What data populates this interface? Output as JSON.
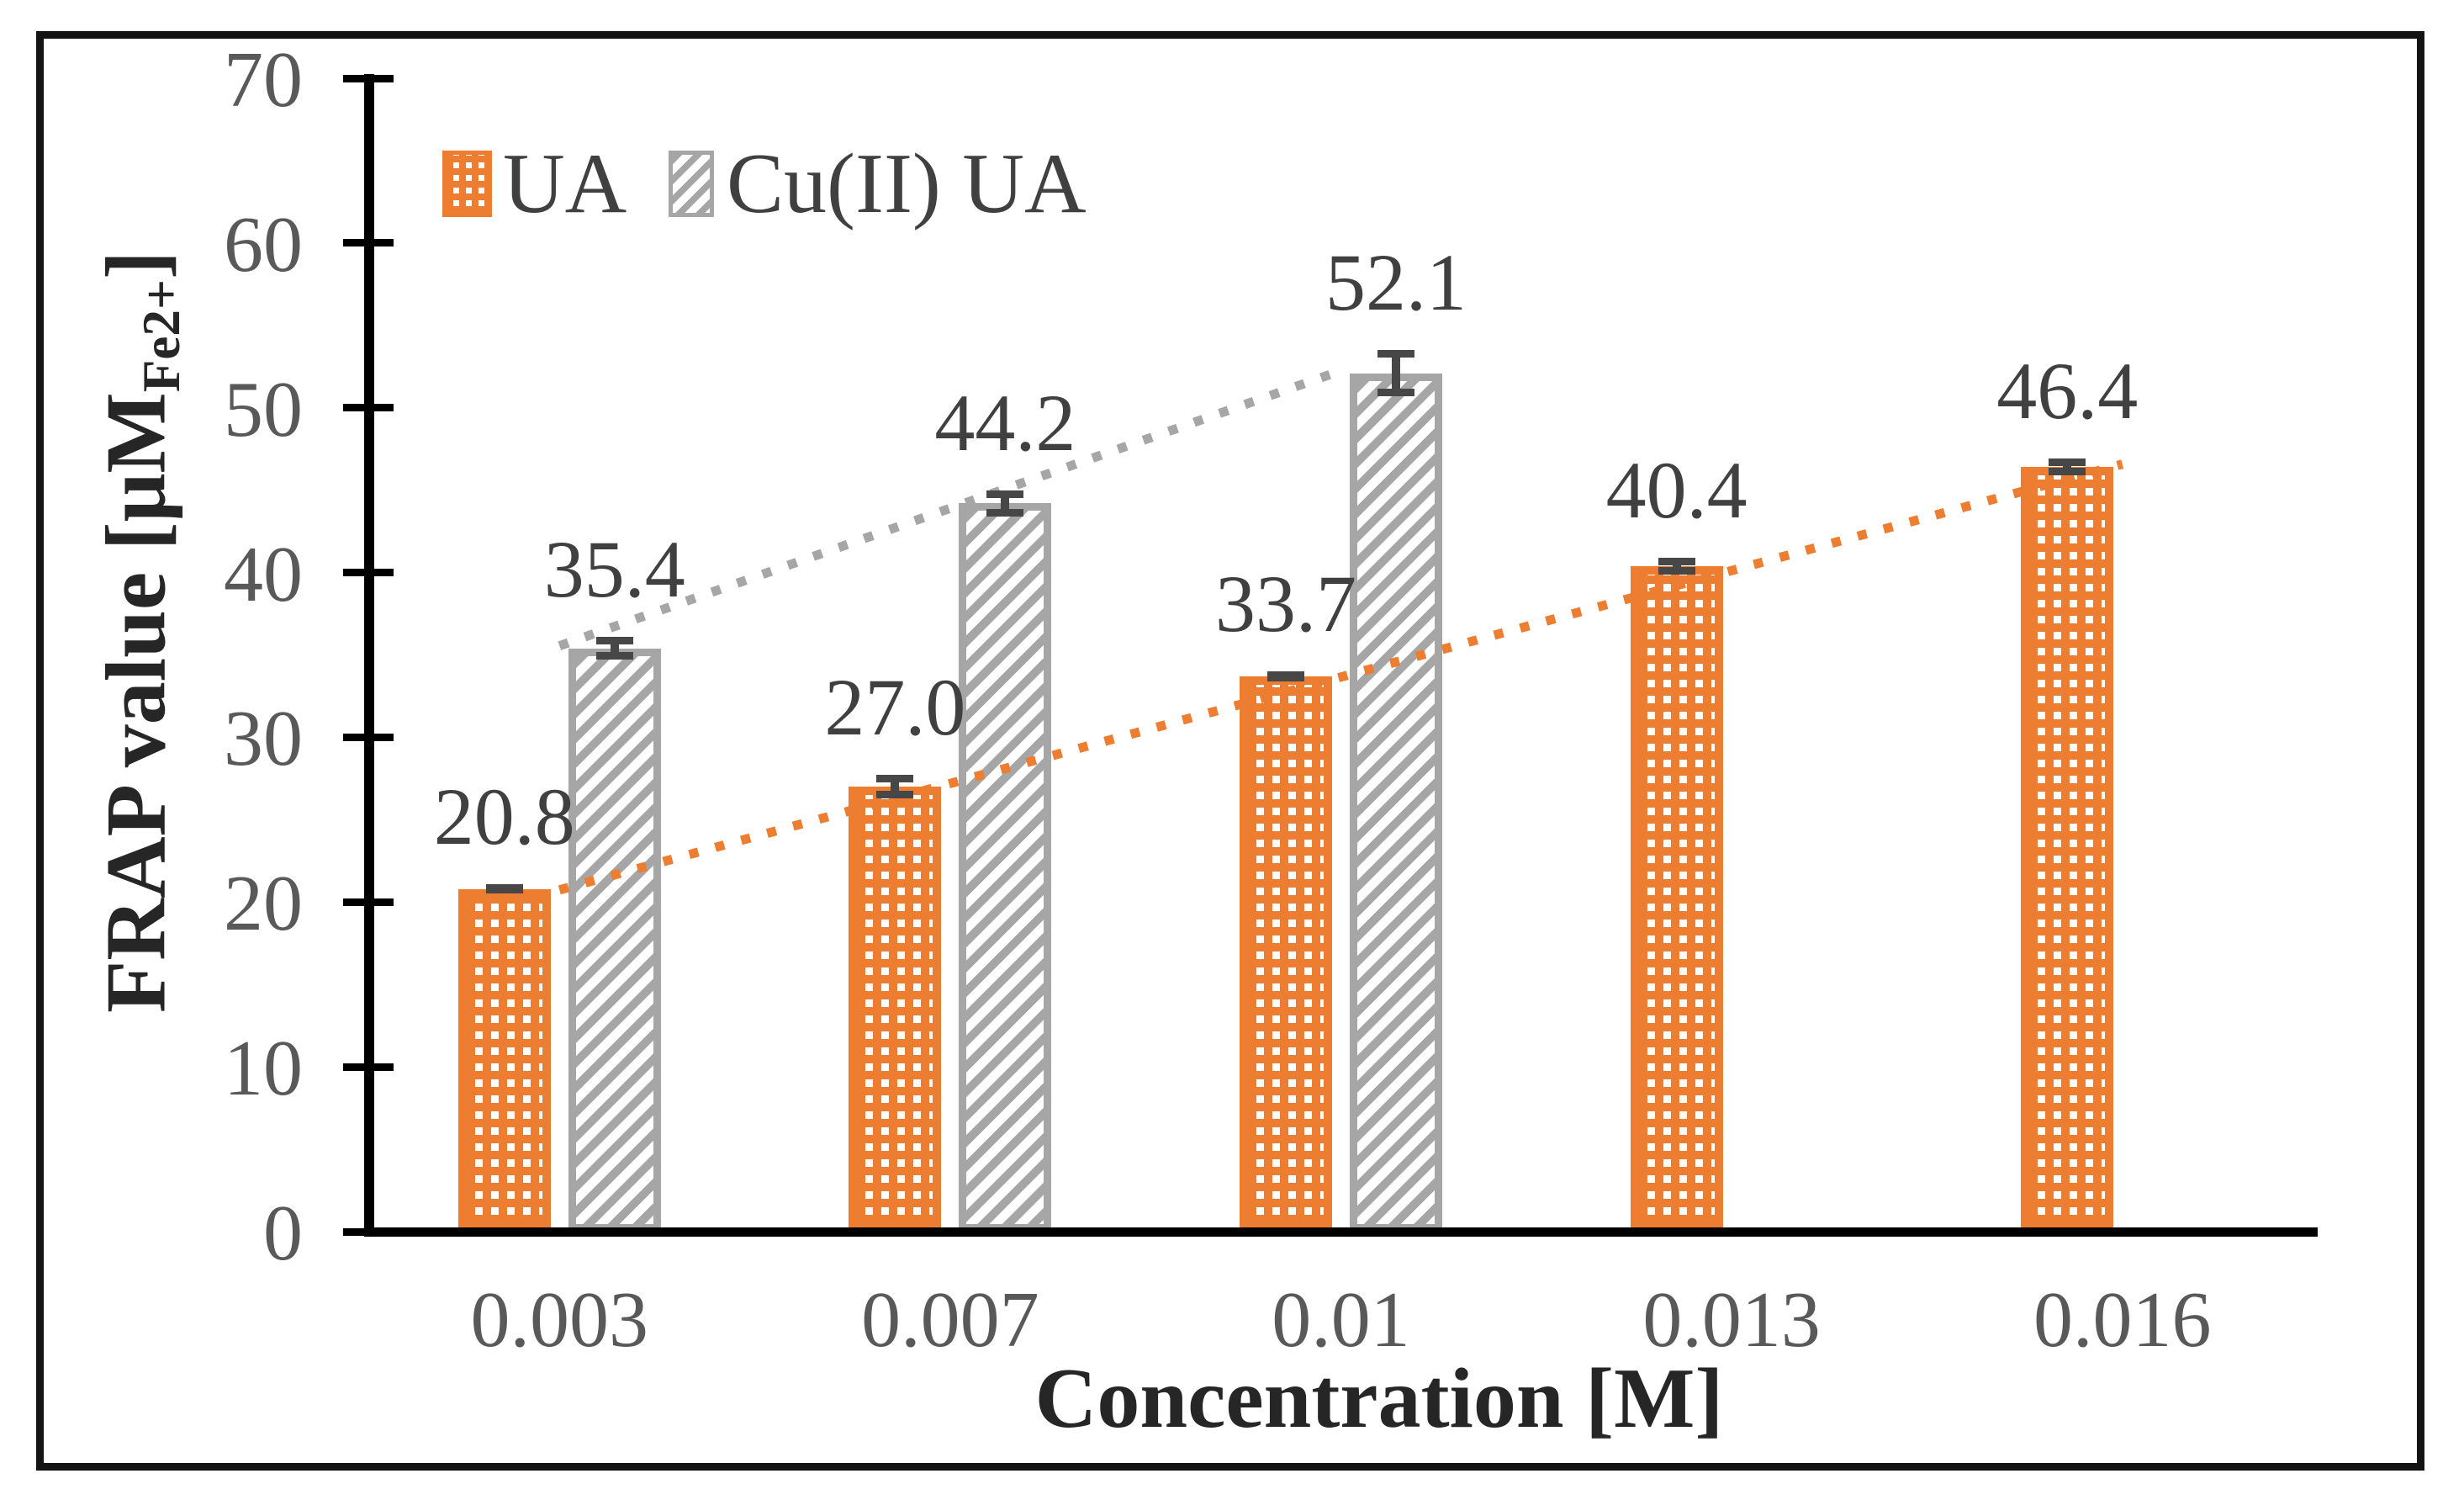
{
  "legend": {
    "items": [
      {
        "label": "UA",
        "swatch": "orange-checker-pattern"
      },
      {
        "label": "Cu(II) UA",
        "swatch": "gray-diagonal-pattern"
      }
    ]
  },
  "axes": {
    "x_title": "Concentration [M]",
    "y_title_pre": "FRAP value [μM",
    "y_title_sub": "Fe2+",
    "y_title_post": "]"
  },
  "chart_data": {
    "type": "bar",
    "title": "",
    "xlabel": "Concentration [M]",
    "ylabel": "FRAP value [uM Fe2+]",
    "categories": [
      "0.003",
      "0.007",
      "0.01",
      "0.013",
      "0.016"
    ],
    "ylim": [
      0,
      70
    ],
    "yticks": [
      0,
      10,
      20,
      30,
      40,
      50,
      60,
      70
    ],
    "grid": false,
    "legend_position": "top-left-inside",
    "series": [
      {
        "name": "UA",
        "color": "#ED7D31",
        "pattern": "checker",
        "values": [
          20.8,
          27.0,
          33.7,
          40.4,
          46.4
        ],
        "data_labels": [
          "20.8",
          "27.0",
          "33.7",
          "40.4",
          "46.4"
        ],
        "error_bars": [
          0.3,
          0.7,
          0.3,
          0.5,
          0.5
        ],
        "trendline": {
          "style": "dotted",
          "color": "#ED7D31"
        }
      },
      {
        "name": "Cu(II) UA",
        "color": "#A6A6A6",
        "pattern": "diagonal-hatch",
        "values": [
          35.4,
          44.2,
          52.1,
          null,
          null
        ],
        "data_labels": [
          "35.4",
          "44.2",
          "52.1",
          null,
          null
        ],
        "error_bars": [
          0.7,
          0.8,
          1.4,
          null,
          null
        ],
        "trendline": {
          "style": "dotted",
          "color": "#A6A6A6"
        }
      }
    ]
  }
}
